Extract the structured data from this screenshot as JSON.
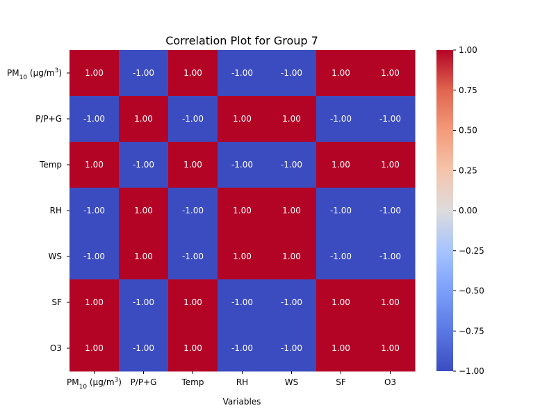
{
  "chart_data": {
    "type": "heatmap",
    "title": "Correlation Plot for Group 7",
    "xlabel": "Variables",
    "ylabel": "",
    "colormap": "coolwarm",
    "vmin": -1.0,
    "vmax": 1.0,
    "labels": [
      "PM10 (µg/m3)",
      "P/P+G",
      "Temp",
      "RH",
      "WS",
      "SF",
      "O3"
    ],
    "matrix": [
      [
        1.0,
        -1.0,
        1.0,
        -1.0,
        -1.0,
        1.0,
        1.0
      ],
      [
        -1.0,
        1.0,
        -1.0,
        1.0,
        1.0,
        -1.0,
        -1.0
      ],
      [
        1.0,
        -1.0,
        1.0,
        -1.0,
        -1.0,
        1.0,
        1.0
      ],
      [
        -1.0,
        1.0,
        -1.0,
        1.0,
        1.0,
        -1.0,
        -1.0
      ],
      [
        -1.0,
        1.0,
        -1.0,
        1.0,
        1.0,
        -1.0,
        -1.0
      ],
      [
        1.0,
        -1.0,
        1.0,
        -1.0,
        -1.0,
        1.0,
        1.0
      ],
      [
        1.0,
        -1.0,
        1.0,
        -1.0,
        -1.0,
        1.0,
        1.0
      ]
    ],
    "colorbar_ticks": [
      "1.00",
      "0.75",
      "0.50",
      "0.25",
      "0.00",
      "−0.25",
      "−0.50",
      "−0.75",
      "−1.00"
    ],
    "colorbar_tick_values": [
      1.0,
      0.75,
      0.5,
      0.25,
      0.0,
      -0.25,
      -0.5,
      -0.75,
      -1.0
    ],
    "grid": false,
    "legend": "right colorbar"
  }
}
